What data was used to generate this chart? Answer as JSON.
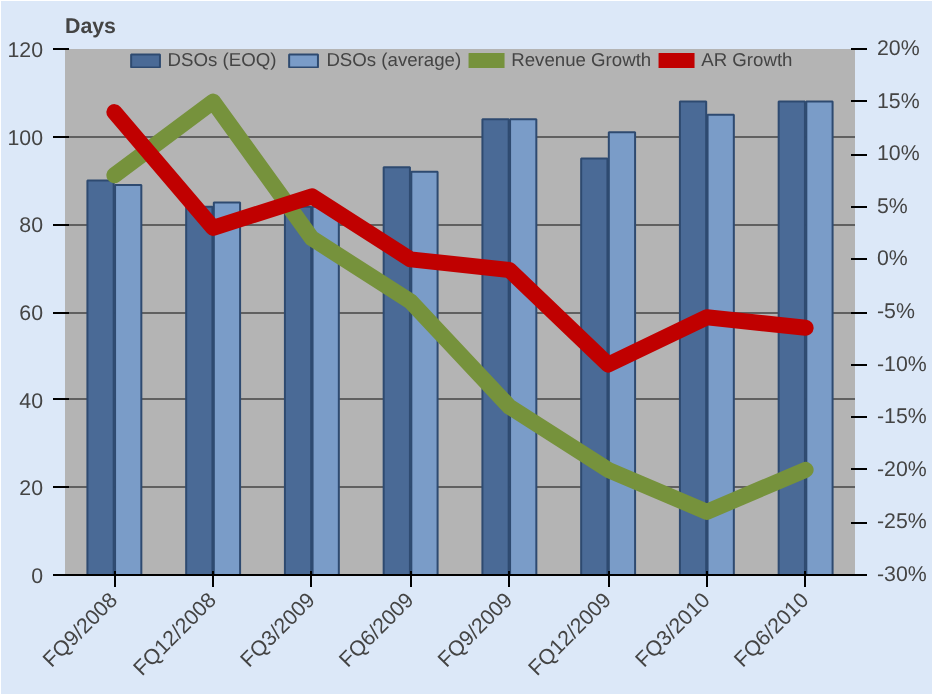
{
  "chart_data": {
    "type": "bar",
    "ylabel": "Days",
    "categories": [
      "FQ9/2008",
      "FQ12/2008",
      "FQ3/2009",
      "FQ6/2009",
      "FQ9/2009",
      "FQ12/2009",
      "FQ3/2010",
      "FQ6/2010"
    ],
    "series": [
      {
        "name": "DSOs (EOQ)",
        "color": "#4a6a96",
        "values": [
          90,
          84,
          84,
          93,
          104,
          95,
          108,
          108
        ]
      },
      {
        "name": "DSOs (average)",
        "color": "#7a9cc8",
        "values": [
          89,
          85,
          84,
          92,
          104,
          101,
          105,
          108
        ]
      },
      {
        "name": "Revenue Growth",
        "type": "line",
        "axis": "y2",
        "color": "#76923c",
        "values": [
          8,
          15,
          2,
          -4,
          -14,
          -20,
          -24,
          -20
        ]
      },
      {
        "name": "AR Growth",
        "type": "line",
        "axis": "y2",
        "color": "#c00000",
        "values": [
          14,
          3,
          6,
          0,
          -1,
          -10,
          -5.5,
          -6.5
        ]
      }
    ],
    "ylim": [
      0,
      120
    ],
    "yticks": [
      0,
      20,
      40,
      60,
      80,
      100,
      120
    ],
    "y2lim": [
      -30,
      20
    ],
    "y2ticks": [
      {
        "value": -30,
        "label": "-30%"
      },
      {
        "value": -25,
        "label": "-25%"
      },
      {
        "value": -20,
        "label": "-20%"
      },
      {
        "value": -15,
        "label": "-15%"
      },
      {
        "value": -10,
        "label": "-10%"
      },
      {
        "value": -5,
        "label": "-5%"
      },
      {
        "value": 0,
        "label": "0%"
      },
      {
        "value": 5,
        "label": "5%"
      },
      {
        "value": 10,
        "label": "10%"
      },
      {
        "value": 15,
        "label": "15%"
      },
      {
        "value": 20,
        "label": "20%"
      }
    ],
    "grid": "y",
    "legend": "top"
  }
}
